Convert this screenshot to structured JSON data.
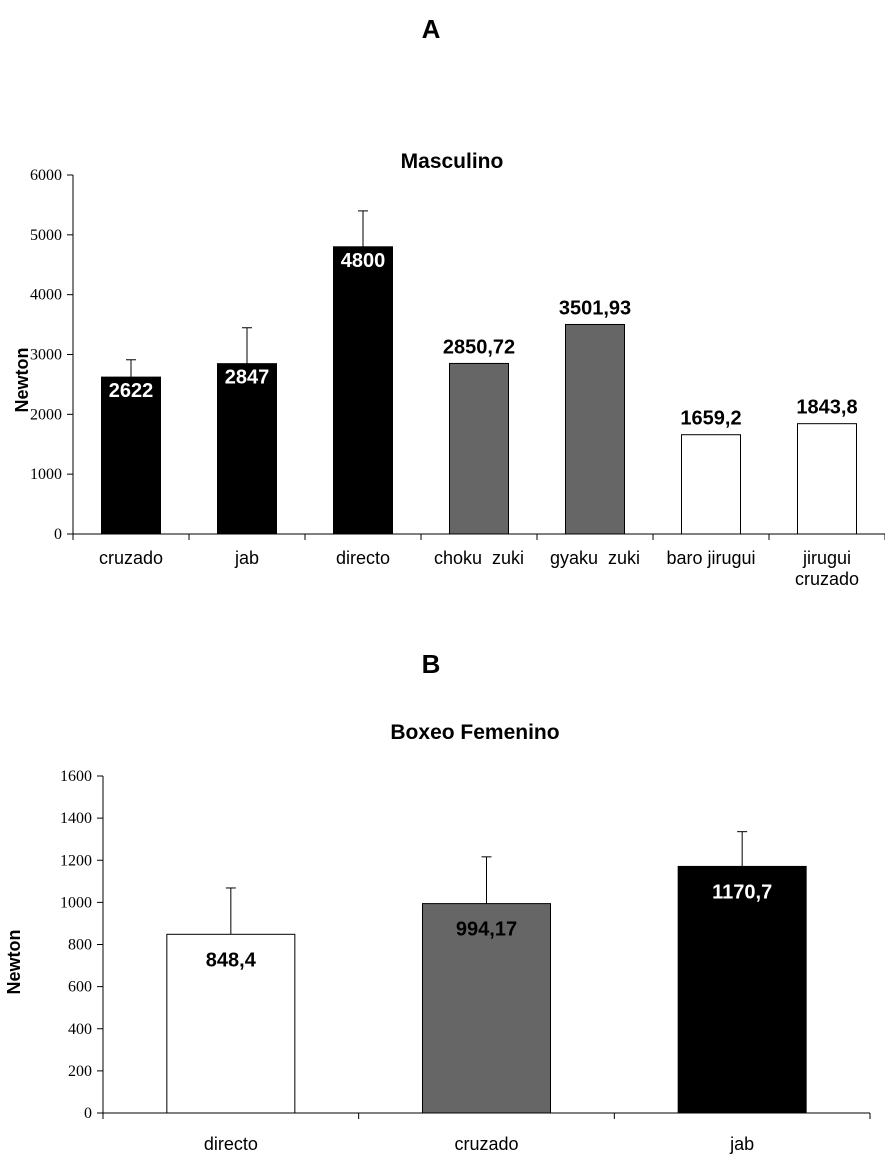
{
  "chart_data": [
    {
      "panel": "A",
      "type": "bar",
      "title": "Masculino",
      "ylabel": "Newton",
      "ylim": [
        0,
        6000
      ],
      "yticks": [
        "0",
        "1000",
        "2000",
        "3000",
        "4000",
        "5000",
        "6000"
      ],
      "categories": [
        [
          "cruzado"
        ],
        [
          "jab"
        ],
        [
          "directo"
        ],
        [
          "choku  zuki"
        ],
        [
          "gyaku  zuki"
        ],
        [
          "baro jirugui"
        ],
        [
          "jirugui",
          "cruzado"
        ]
      ],
      "values": [
        2622,
        2847,
        4800,
        2850.72,
        3501.93,
        1659.2,
        1843.8
      ],
      "errors": [
        290,
        600,
        600,
        0,
        0,
        0,
        0
      ],
      "data_labels": [
        "2622",
        "2847",
        "4800",
        "2850,72",
        "3501,93",
        "1659,2",
        "1843,8"
      ],
      "label_position": [
        "inside",
        "inside",
        "inside",
        "above",
        "above",
        "above",
        "above"
      ],
      "colors": [
        "#000000",
        "#000000",
        "#000000",
        "#666666",
        "#666666",
        "#ffffff",
        "#ffffff"
      ],
      "grid": false
    },
    {
      "panel": "B",
      "type": "bar",
      "title": "Boxeo Femenino",
      "ylabel": "Newton",
      "ylim": [
        0,
        1600
      ],
      "yticks": [
        "0",
        "200",
        "400",
        "600",
        "800",
        "1000",
        "1200",
        "1400",
        "1600"
      ],
      "categories": [
        [
          "directo"
        ],
        [
          "cruzado"
        ],
        [
          "jab"
        ]
      ],
      "values": [
        848.4,
        994.17,
        1170.7
      ],
      "errors": [
        220,
        222,
        165
      ],
      "data_labels": [
        "848,4",
        "994,17",
        "1170,7"
      ],
      "label_position": [
        "inside",
        "inside",
        "inside"
      ],
      "colors": [
        "#ffffff",
        "#666666",
        "#000000"
      ],
      "grid": false
    }
  ]
}
